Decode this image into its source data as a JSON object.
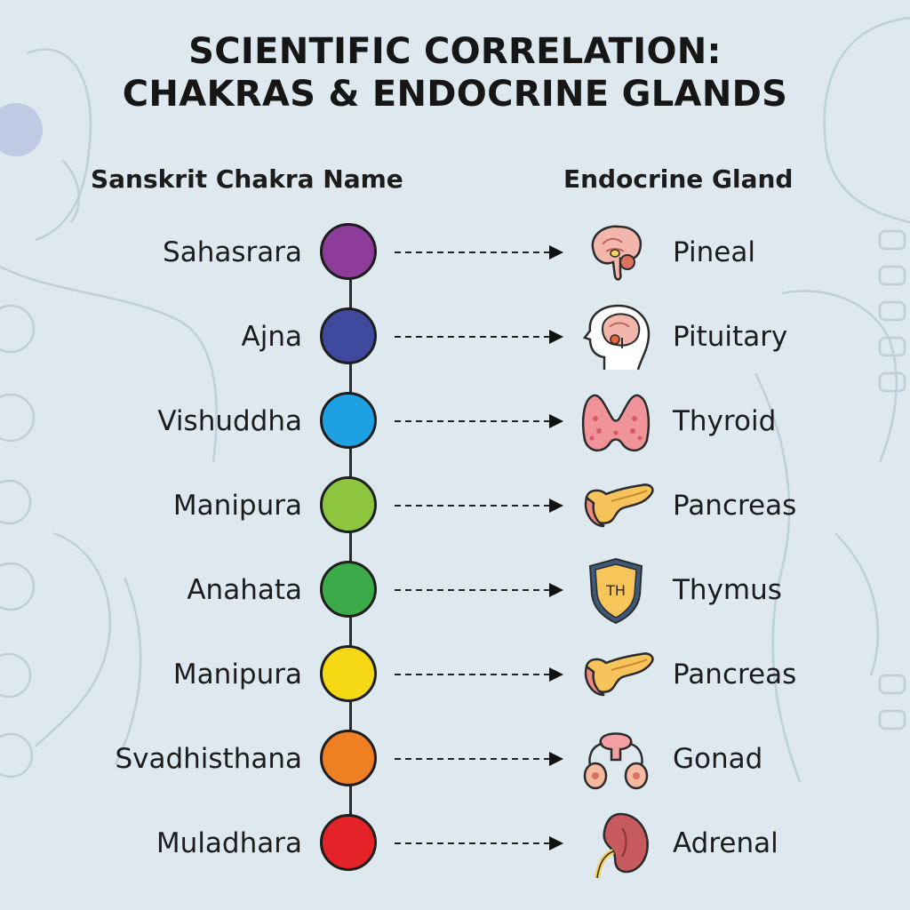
{
  "title": {
    "line1": "SCIENTIFIC CORRELATION:",
    "line2": "CHAKRAS & ENDOCRINE GLANDS"
  },
  "columns": {
    "left": "Sanskrit Chakra Name",
    "right": "Endocrine Gland"
  },
  "rows": [
    {
      "chakra": "Sahasrara",
      "color": "#8e3c9a",
      "gland": "Pineal",
      "icon": "brain-pineal-icon"
    },
    {
      "chakra": "Ajna",
      "color": "#3f4a9e",
      "gland": "Pituitary",
      "icon": "head-pituitary-icon"
    },
    {
      "chakra": "Vishuddha",
      "color": "#1ea1e2",
      "gland": "Thyroid",
      "icon": "thyroid-icon"
    },
    {
      "chakra": "Manipura",
      "color": "#8cc63f",
      "gland": "Pancreas",
      "icon": "pancreas-icon"
    },
    {
      "chakra": "Anahata",
      "color": "#3bab4a",
      "gland": "Thymus",
      "icon": "thymus-shield-icon",
      "icon_text": "TH"
    },
    {
      "chakra": "Manipura",
      "color": "#f6d915",
      "gland": "Pancreas",
      "icon": "pancreas-icon"
    },
    {
      "chakra": "Svadhisthana",
      "color": "#ee7f22",
      "gland": "Gonad",
      "icon": "gonad-icon"
    },
    {
      "chakra": "Muladhara",
      "color": "#e32328",
      "gland": "Adrenal",
      "icon": "adrenal-kidney-icon"
    }
  ]
}
